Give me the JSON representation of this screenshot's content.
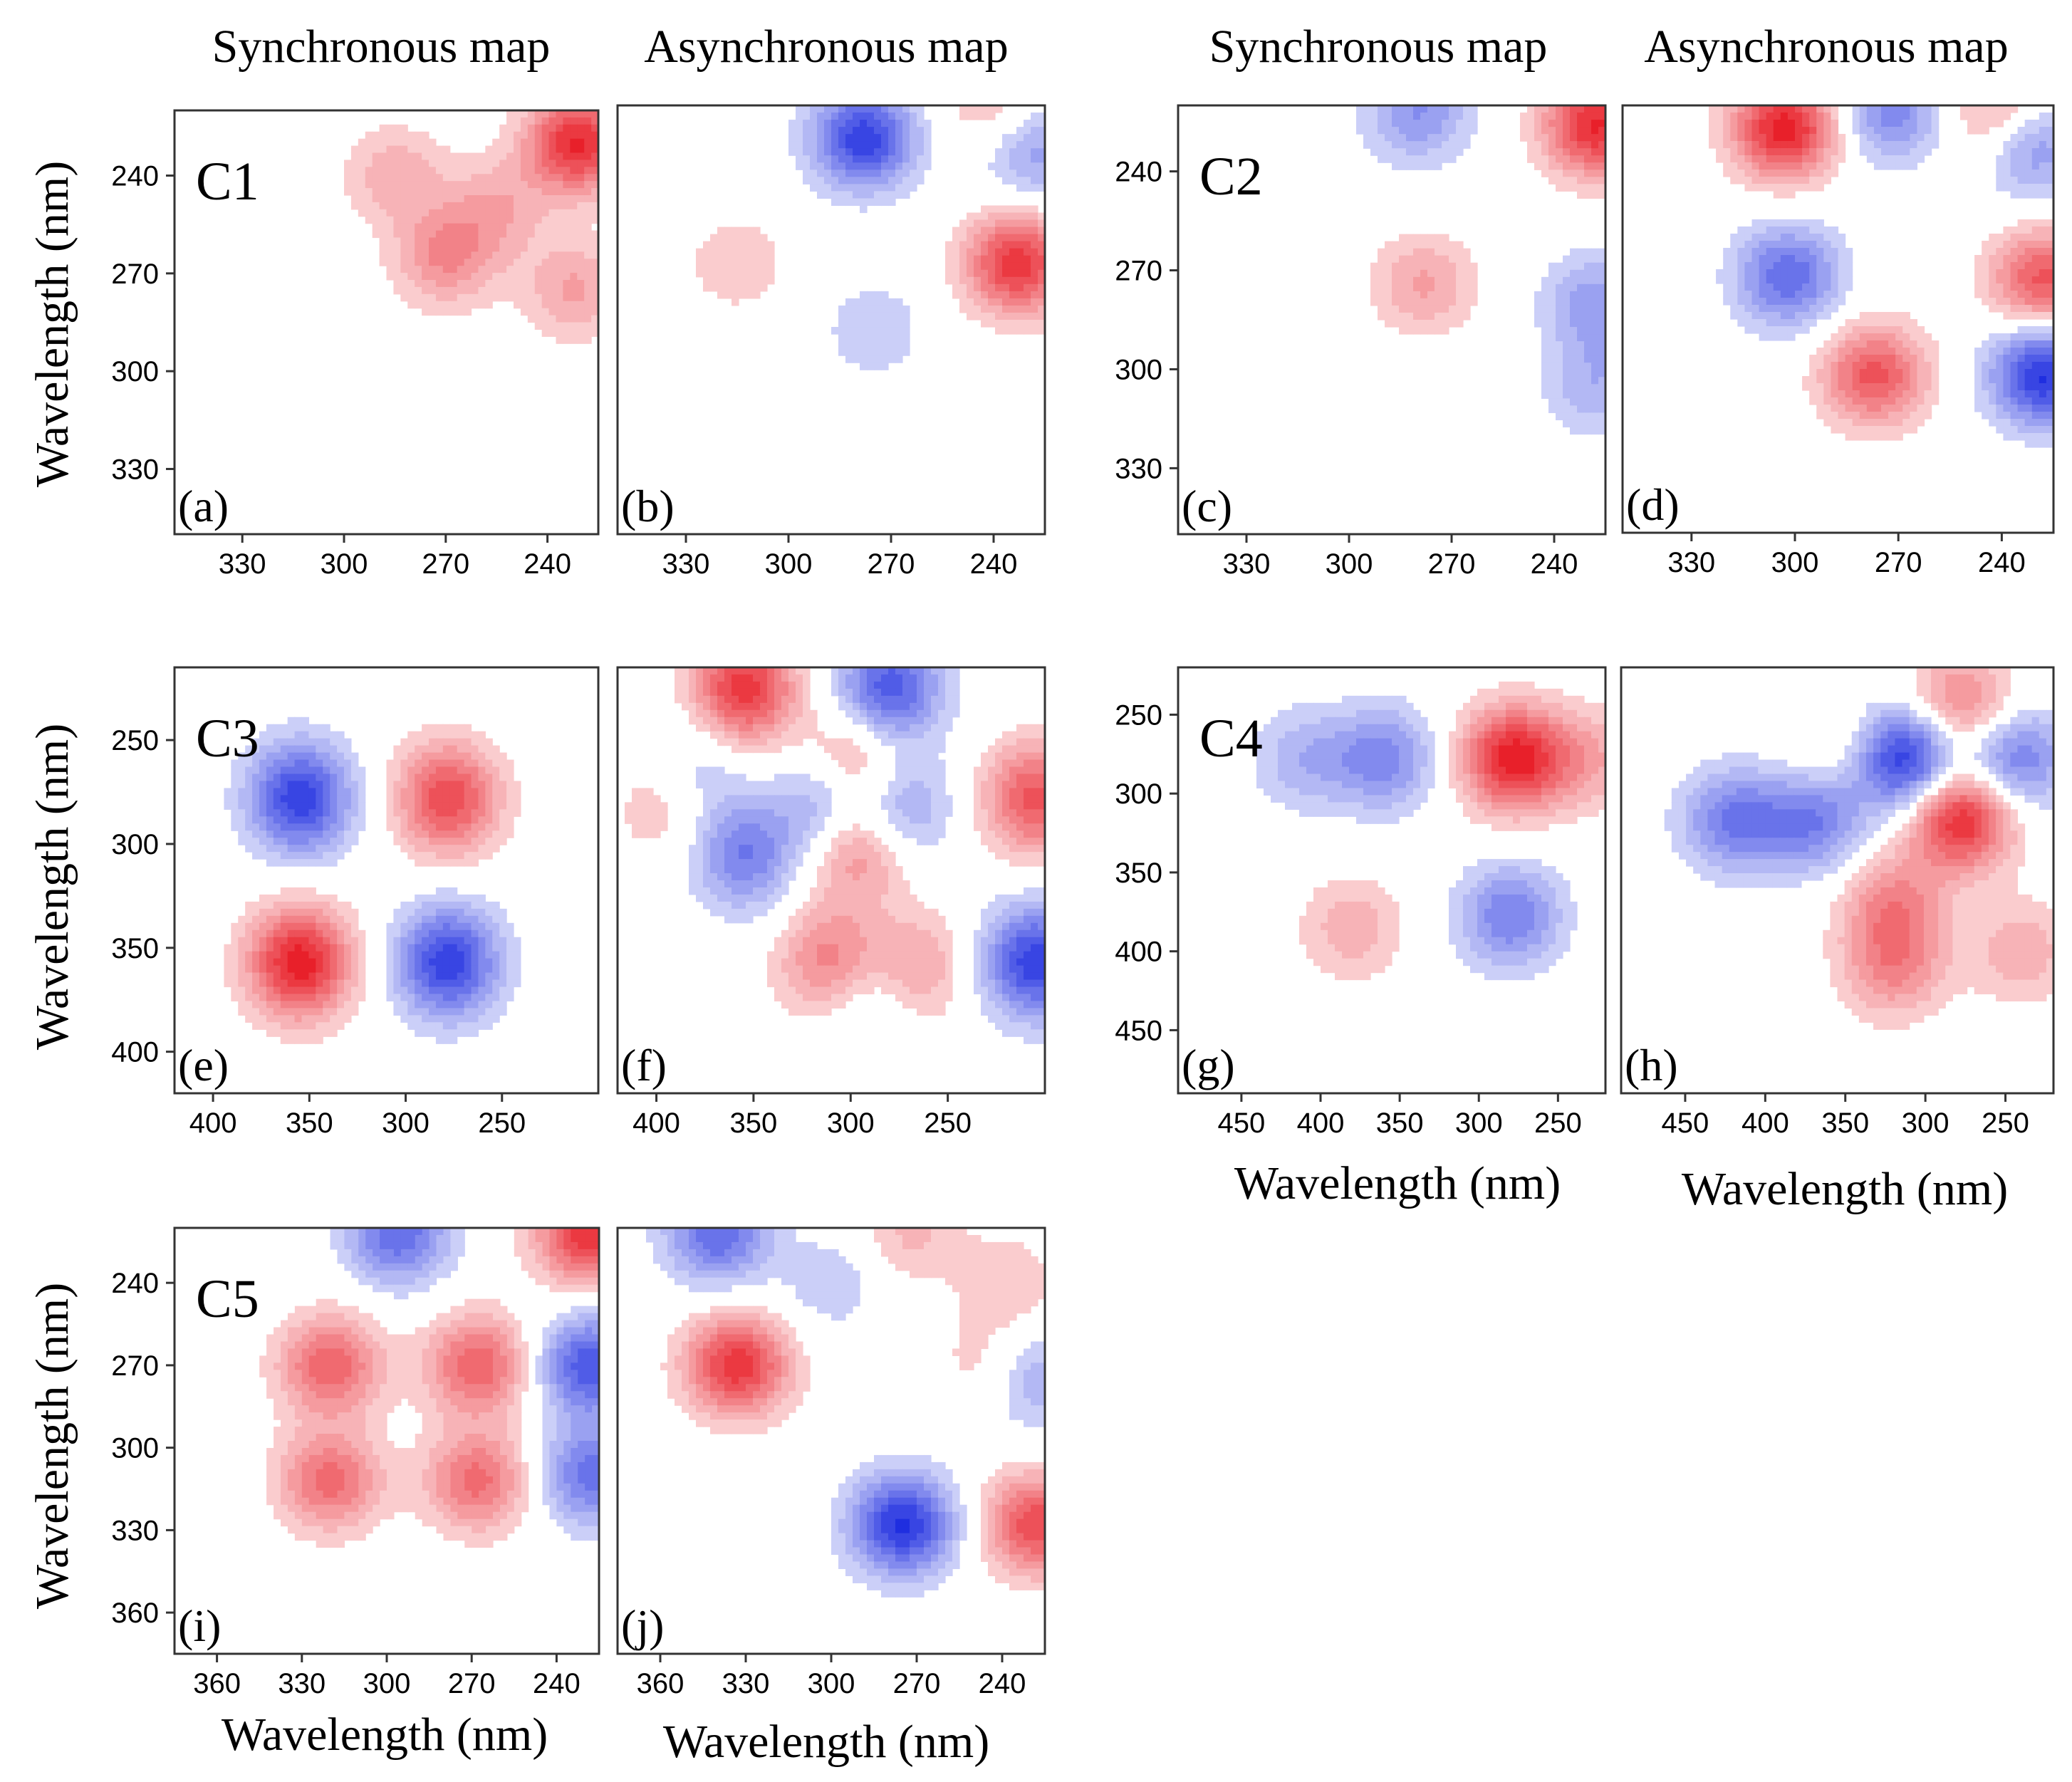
{
  "figure": {
    "column_titles": [
      "Synchronous map",
      "Asynchronous map",
      "Synchronous map",
      "Asynchronous map"
    ],
    "y_axis_title": "Wavelength (nm)",
    "x_axis_title": "Wavelength (nm)",
    "colors": {
      "positive": "#e8202a",
      "negative": "#1f2ee0",
      "zero": "#ffffff"
    }
  },
  "chart_data": [
    {
      "type": "heatmap",
      "panel": "(a)",
      "group": "C1",
      "map": "Synchronous map",
      "xlim": [
        350,
        225
      ],
      "ylim": [
        220,
        350
      ],
      "xticks": [
        330,
        300,
        270,
        240
      ],
      "yticks": [
        240,
        270,
        300,
        330
      ],
      "xlabel": "",
      "ylabel": "Wavelength (nm)",
      "features": [
        {
          "x": 231,
          "y": 230,
          "value": 0.9
        },
        {
          "x": 270,
          "y": 265,
          "value": 0.45
        },
        {
          "x": 285,
          "y": 240,
          "value": 0.3
        },
        {
          "x": 255,
          "y": 250,
          "value": 0.3
        },
        {
          "x": 232,
          "y": 275,
          "value": 0.35
        }
      ]
    },
    {
      "type": "heatmap",
      "panel": "(b)",
      "group": "C1",
      "map": "Asynchronous map",
      "xlim": [
        350,
        225
      ],
      "ylim": [
        220,
        350
      ],
      "xticks": [
        330,
        300,
        270,
        240
      ],
      "yticks": [],
      "xlabel": "",
      "ylabel": "",
      "features": [
        {
          "x": 278,
          "y": 230,
          "value": -0.85
        },
        {
          "x": 233,
          "y": 268,
          "value": 0.85
        },
        {
          "x": 228,
          "y": 234,
          "value": -0.4
        },
        {
          "x": 240,
          "y": 220,
          "value": 0.25
        },
        {
          "x": 275,
          "y": 288,
          "value": -0.2
        },
        {
          "x": 315,
          "y": 268,
          "value": 0.2
        }
      ]
    },
    {
      "type": "heatmap",
      "panel": "(c)",
      "group": "C2",
      "map": "Synchronous map",
      "xlim": [
        350,
        225
      ],
      "ylim": [
        220,
        350
      ],
      "xticks": [
        330,
        300,
        270,
        240
      ],
      "yticks": [
        240,
        270,
        300,
        330
      ],
      "xlabel": "",
      "ylabel": "",
      "features": [
        {
          "x": 228,
          "y": 226,
          "value": 0.9
        },
        {
          "x": 280,
          "y": 222,
          "value": -0.45
        },
        {
          "x": 278,
          "y": 274,
          "value": 0.35
        },
        {
          "x": 228,
          "y": 280,
          "value": -0.4
        },
        {
          "x": 228,
          "y": 305,
          "value": -0.3
        }
      ]
    },
    {
      "type": "heatmap",
      "panel": "(d)",
      "group": "C2",
      "map": "Asynchronous map",
      "xlim": [
        350,
        225
      ],
      "ylim": [
        220,
        350
      ],
      "xticks": [
        330,
        300,
        270,
        240
      ],
      "yticks": [],
      "xlabel": "",
      "ylabel": "",
      "features": [
        {
          "x": 303,
          "y": 227,
          "value": 0.95
        },
        {
          "x": 272,
          "y": 222,
          "value": -0.5
        },
        {
          "x": 302,
          "y": 272,
          "value": -0.65
        },
        {
          "x": 277,
          "y": 302,
          "value": 0.7
        },
        {
          "x": 228,
          "y": 302,
          "value": -0.9
        },
        {
          "x": 228,
          "y": 273,
          "value": 0.7
        },
        {
          "x": 232,
          "y": 232,
          "value": -0.55
        },
        {
          "x": 240,
          "y": 224,
          "value": 0.45
        }
      ]
    },
    {
      "type": "heatmap",
      "panel": "(e)",
      "group": "C3",
      "map": "Synchronous map",
      "xlim": [
        420,
        200
      ],
      "ylim": [
        215,
        420
      ],
      "xticks": [
        400,
        350,
        300,
        250
      ],
      "yticks": [
        250,
        300,
        350,
        400
      ],
      "xlabel": "",
      "ylabel": "Wavelength (nm)",
      "features": [
        {
          "x": 355,
          "y": 278,
          "value": -0.85
        },
        {
          "x": 278,
          "y": 278,
          "value": 0.75
        },
        {
          "x": 355,
          "y": 357,
          "value": 0.95
        },
        {
          "x": 278,
          "y": 357,
          "value": -0.85
        }
      ]
    },
    {
      "type": "heatmap",
      "panel": "(f)",
      "group": "C3",
      "map": "Asynchronous map",
      "xlim": [
        420,
        200
      ],
      "ylim": [
        215,
        420
      ],
      "xticks": [
        400,
        350,
        300,
        250
      ],
      "yticks": [],
      "xlabel": "",
      "ylabel": "",
      "features": [
        {
          "x": 355,
          "y": 225,
          "value": 0.85
        },
        {
          "x": 280,
          "y": 225,
          "value": -0.75
        },
        {
          "x": 205,
          "y": 278,
          "value": 0.7
        },
        {
          "x": 205,
          "y": 357,
          "value": -0.85
        },
        {
          "x": 355,
          "y": 305,
          "value": -0.55
        },
        {
          "x": 310,
          "y": 282,
          "value": -0.55
        },
        {
          "x": 275,
          "y": 282,
          "value": -0.45
        },
        {
          "x": 297,
          "y": 262,
          "value": 0.5
        },
        {
          "x": 297,
          "y": 300,
          "value": 0.6
        },
        {
          "x": 310,
          "y": 357,
          "value": 0.55
        },
        {
          "x": 268,
          "y": 360,
          "value": 0.4
        },
        {
          "x": 290,
          "y": 370,
          "value": -0.3
        },
        {
          "x": 380,
          "y": 263,
          "value": -0.25
        },
        {
          "x": 395,
          "y": 281,
          "value": 0.25
        }
      ]
    },
    {
      "type": "heatmap",
      "panel": "(g)",
      "group": "C4",
      "map": "Synchronous map",
      "xlim": [
        490,
        220
      ],
      "ylim": [
        220,
        490
      ],
      "xticks": [
        450,
        400,
        350,
        300,
        250
      ],
      "yticks": [
        250,
        300,
        350,
        400,
        450
      ],
      "xlabel": "Wavelength (nm)",
      "ylabel": "",
      "features": [
        {
          "x": 278,
          "y": 278,
          "value": 0.95
        },
        {
          "x": 360,
          "y": 278,
          "value": -0.5
        },
        {
          "x": 410,
          "y": 278,
          "value": -0.3
        },
        {
          "x": 380,
          "y": 385,
          "value": 0.3
        },
        {
          "x": 280,
          "y": 378,
          "value": -0.55
        },
        {
          "x": 230,
          "y": 278,
          "value": 0.3
        }
      ]
    },
    {
      "type": "heatmap",
      "panel": "(h)",
      "group": "C4",
      "map": "Asynchronous map",
      "xlim": [
        490,
        220
      ],
      "ylim": [
        220,
        490
      ],
      "xticks": [
        450,
        400,
        350,
        300,
        250
      ],
      "yticks": [],
      "xlabel": "Wavelength (nm)",
      "ylabel": "",
      "features": [
        {
          "x": 312,
          "y": 278,
          "value": -0.95
        },
        {
          "x": 278,
          "y": 315,
          "value": 0.95
        },
        {
          "x": 278,
          "y": 245,
          "value": 0.55
        },
        {
          "x": 245,
          "y": 278,
          "value": -0.6
        },
        {
          "x": 420,
          "y": 317,
          "value": -0.55
        },
        {
          "x": 370,
          "y": 317,
          "value": -0.55
        },
        {
          "x": 320,
          "y": 370,
          "value": 0.45
        },
        {
          "x": 320,
          "y": 410,
          "value": 0.45
        },
        {
          "x": 240,
          "y": 400,
          "value": 0.3
        },
        {
          "x": 355,
          "y": 272,
          "value": 0.2
        }
      ]
    },
    {
      "type": "heatmap",
      "panel": "(i)",
      "group": "C5",
      "map": "Synchronous map",
      "xlim": [
        375,
        225
      ],
      "ylim": [
        220,
        375
      ],
      "xticks": [
        360,
        330,
        300,
        270,
        240
      ],
      "yticks": [
        240,
        270,
        300,
        330,
        360
      ],
      "xlabel": "Wavelength (nm)",
      "ylabel": "Wavelength (nm)",
      "features": [
        {
          "x": 268,
          "y": 270,
          "value": 0.65
        },
        {
          "x": 320,
          "y": 270,
          "value": 0.65
        },
        {
          "x": 320,
          "y": 312,
          "value": 0.6
        },
        {
          "x": 268,
          "y": 312,
          "value": 0.6
        },
        {
          "x": 296,
          "y": 222,
          "value": -0.65
        },
        {
          "x": 229,
          "y": 222,
          "value": 0.85
        },
        {
          "x": 228,
          "y": 270,
          "value": -0.75
        },
        {
          "x": 228,
          "y": 310,
          "value": -0.6
        }
      ]
    },
    {
      "type": "heatmap",
      "panel": "(j)",
      "group": "C5",
      "map": "Asynchronous map",
      "xlim": [
        375,
        225
      ],
      "ylim": [
        220,
        375
      ],
      "xticks": [
        360,
        330,
        300,
        270,
        240
      ],
      "yticks": [],
      "xlabel": "Wavelength (nm)",
      "ylabel": "",
      "features": [
        {
          "x": 333,
          "y": 270,
          "value": 0.85
        },
        {
          "x": 275,
          "y": 328,
          "value": -0.9
        },
        {
          "x": 228,
          "y": 328,
          "value": 0.75
        },
        {
          "x": 340,
          "y": 222,
          "value": -0.65
        },
        {
          "x": 272,
          "y": 222,
          "value": 0.25
        },
        {
          "x": 300,
          "y": 240,
          "value": -0.2
        },
        {
          "x": 229,
          "y": 275,
          "value": -0.35
        },
        {
          "x": 245,
          "y": 270,
          "value": 0.2
        },
        {
          "x": 238,
          "y": 240,
          "value": 0.2
        }
      ]
    }
  ]
}
